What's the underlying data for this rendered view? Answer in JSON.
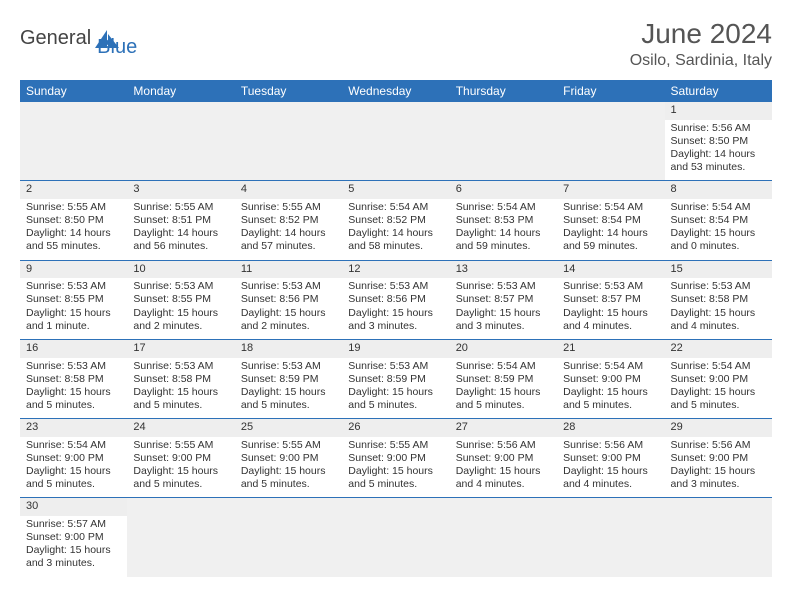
{
  "logo": {
    "general": "General",
    "blue": "Blue"
  },
  "title": "June 2024",
  "location": "Osilo, Sardinia, Italy",
  "colors": {
    "header_bg": "#2d71b8",
    "header_text": "#ffffff",
    "daynum_bg": "#eeeeee",
    "border": "#2d71b8",
    "text": "#333333",
    "title_text": "#555555"
  },
  "weekdays": [
    "Sunday",
    "Monday",
    "Tuesday",
    "Wednesday",
    "Thursday",
    "Friday",
    "Saturday"
  ],
  "weeks": [
    [
      null,
      null,
      null,
      null,
      null,
      null,
      {
        "d": "1",
        "sr": "Sunrise: 5:56 AM",
        "ss": "Sunset: 8:50 PM",
        "dl": "Daylight: 14 hours and 53 minutes."
      }
    ],
    [
      {
        "d": "2",
        "sr": "Sunrise: 5:55 AM",
        "ss": "Sunset: 8:50 PM",
        "dl": "Daylight: 14 hours and 55 minutes."
      },
      {
        "d": "3",
        "sr": "Sunrise: 5:55 AM",
        "ss": "Sunset: 8:51 PM",
        "dl": "Daylight: 14 hours and 56 minutes."
      },
      {
        "d": "4",
        "sr": "Sunrise: 5:55 AM",
        "ss": "Sunset: 8:52 PM",
        "dl": "Daylight: 14 hours and 57 minutes."
      },
      {
        "d": "5",
        "sr": "Sunrise: 5:54 AM",
        "ss": "Sunset: 8:52 PM",
        "dl": "Daylight: 14 hours and 58 minutes."
      },
      {
        "d": "6",
        "sr": "Sunrise: 5:54 AM",
        "ss": "Sunset: 8:53 PM",
        "dl": "Daylight: 14 hours and 59 minutes."
      },
      {
        "d": "7",
        "sr": "Sunrise: 5:54 AM",
        "ss": "Sunset: 8:54 PM",
        "dl": "Daylight: 14 hours and 59 minutes."
      },
      {
        "d": "8",
        "sr": "Sunrise: 5:54 AM",
        "ss": "Sunset: 8:54 PM",
        "dl": "Daylight: 15 hours and 0 minutes."
      }
    ],
    [
      {
        "d": "9",
        "sr": "Sunrise: 5:53 AM",
        "ss": "Sunset: 8:55 PM",
        "dl": "Daylight: 15 hours and 1 minute."
      },
      {
        "d": "10",
        "sr": "Sunrise: 5:53 AM",
        "ss": "Sunset: 8:55 PM",
        "dl": "Daylight: 15 hours and 2 minutes."
      },
      {
        "d": "11",
        "sr": "Sunrise: 5:53 AM",
        "ss": "Sunset: 8:56 PM",
        "dl": "Daylight: 15 hours and 2 minutes."
      },
      {
        "d": "12",
        "sr": "Sunrise: 5:53 AM",
        "ss": "Sunset: 8:56 PM",
        "dl": "Daylight: 15 hours and 3 minutes."
      },
      {
        "d": "13",
        "sr": "Sunrise: 5:53 AM",
        "ss": "Sunset: 8:57 PM",
        "dl": "Daylight: 15 hours and 3 minutes."
      },
      {
        "d": "14",
        "sr": "Sunrise: 5:53 AM",
        "ss": "Sunset: 8:57 PM",
        "dl": "Daylight: 15 hours and 4 minutes."
      },
      {
        "d": "15",
        "sr": "Sunrise: 5:53 AM",
        "ss": "Sunset: 8:58 PM",
        "dl": "Daylight: 15 hours and 4 minutes."
      }
    ],
    [
      {
        "d": "16",
        "sr": "Sunrise: 5:53 AM",
        "ss": "Sunset: 8:58 PM",
        "dl": "Daylight: 15 hours and 5 minutes."
      },
      {
        "d": "17",
        "sr": "Sunrise: 5:53 AM",
        "ss": "Sunset: 8:58 PM",
        "dl": "Daylight: 15 hours and 5 minutes."
      },
      {
        "d": "18",
        "sr": "Sunrise: 5:53 AM",
        "ss": "Sunset: 8:59 PM",
        "dl": "Daylight: 15 hours and 5 minutes."
      },
      {
        "d": "19",
        "sr": "Sunrise: 5:53 AM",
        "ss": "Sunset: 8:59 PM",
        "dl": "Daylight: 15 hours and 5 minutes."
      },
      {
        "d": "20",
        "sr": "Sunrise: 5:54 AM",
        "ss": "Sunset: 8:59 PM",
        "dl": "Daylight: 15 hours and 5 minutes."
      },
      {
        "d": "21",
        "sr": "Sunrise: 5:54 AM",
        "ss": "Sunset: 9:00 PM",
        "dl": "Daylight: 15 hours and 5 minutes."
      },
      {
        "d": "22",
        "sr": "Sunrise: 5:54 AM",
        "ss": "Sunset: 9:00 PM",
        "dl": "Daylight: 15 hours and 5 minutes."
      }
    ],
    [
      {
        "d": "23",
        "sr": "Sunrise: 5:54 AM",
        "ss": "Sunset: 9:00 PM",
        "dl": "Daylight: 15 hours and 5 minutes."
      },
      {
        "d": "24",
        "sr": "Sunrise: 5:55 AM",
        "ss": "Sunset: 9:00 PM",
        "dl": "Daylight: 15 hours and 5 minutes."
      },
      {
        "d": "25",
        "sr": "Sunrise: 5:55 AM",
        "ss": "Sunset: 9:00 PM",
        "dl": "Daylight: 15 hours and 5 minutes."
      },
      {
        "d": "26",
        "sr": "Sunrise: 5:55 AM",
        "ss": "Sunset: 9:00 PM",
        "dl": "Daylight: 15 hours and 5 minutes."
      },
      {
        "d": "27",
        "sr": "Sunrise: 5:56 AM",
        "ss": "Sunset: 9:00 PM",
        "dl": "Daylight: 15 hours and 4 minutes."
      },
      {
        "d": "28",
        "sr": "Sunrise: 5:56 AM",
        "ss": "Sunset: 9:00 PM",
        "dl": "Daylight: 15 hours and 4 minutes."
      },
      {
        "d": "29",
        "sr": "Sunrise: 5:56 AM",
        "ss": "Sunset: 9:00 PM",
        "dl": "Daylight: 15 hours and 3 minutes."
      }
    ],
    [
      {
        "d": "30",
        "sr": "Sunrise: 5:57 AM",
        "ss": "Sunset: 9:00 PM",
        "dl": "Daylight: 15 hours and 3 minutes."
      },
      null,
      null,
      null,
      null,
      null,
      null
    ]
  ]
}
